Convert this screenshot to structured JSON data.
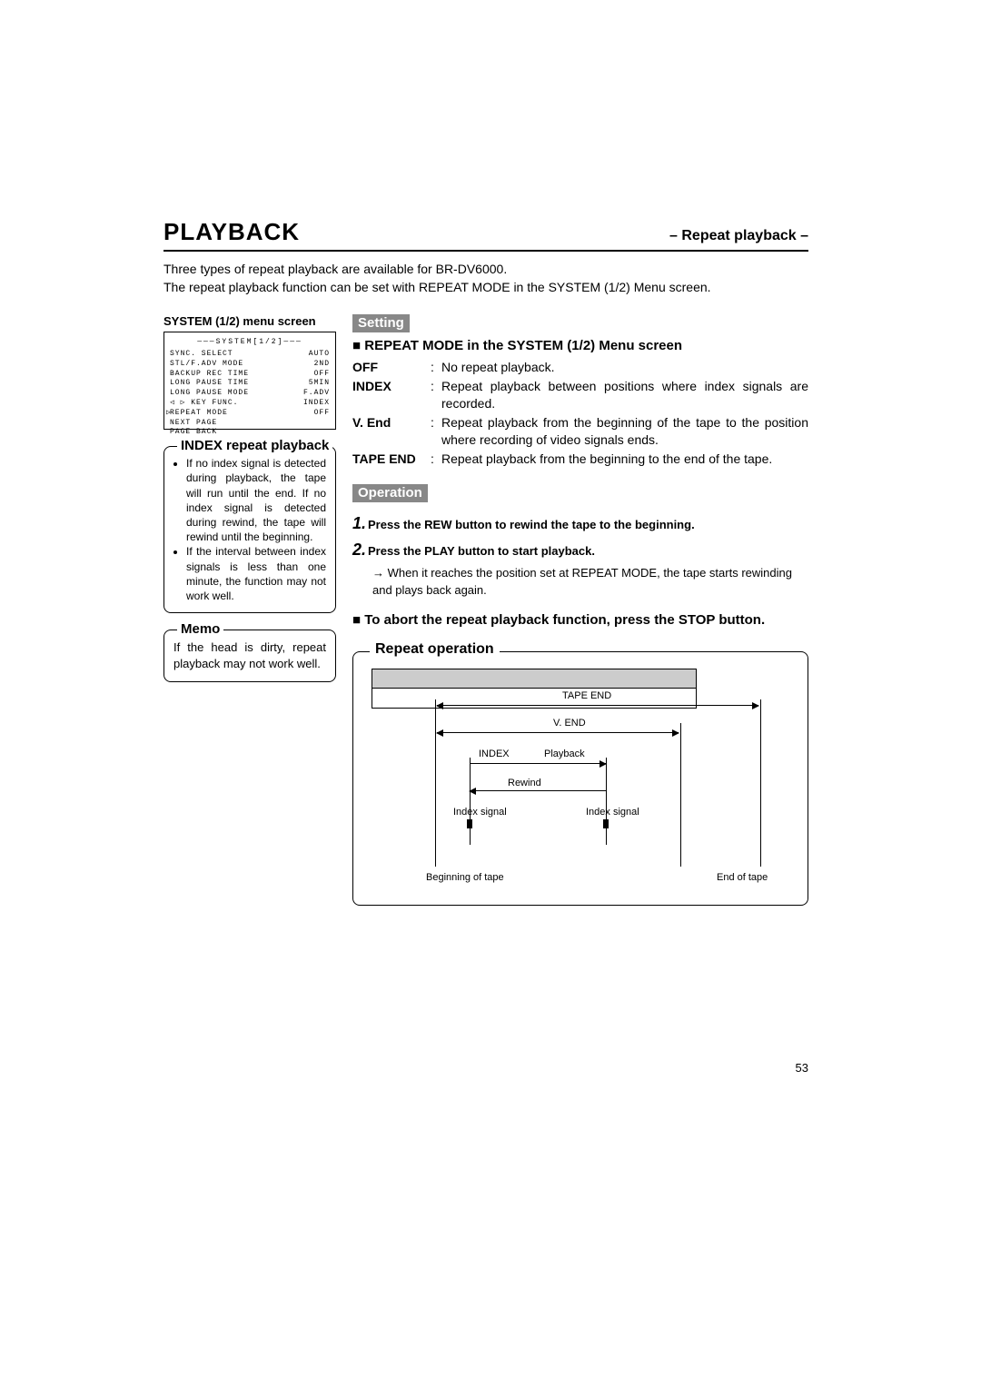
{
  "header": {
    "title": "PLAYBACK",
    "subtitle": "– Repeat playback –"
  },
  "intro": {
    "line1": "Three types of repeat playback are available for BR-DV6000.",
    "line2": "The repeat playback function can be set with REPEAT MODE in the SYSTEM (1/2) Menu screen."
  },
  "menu": {
    "caption": "SYSTEM (1/2) menu screen",
    "title": "———SYSTEM[1/2]———",
    "rows": [
      {
        "l": "SYNC. SELECT",
        "r": "AUTO"
      },
      {
        "l": "STL/F.ADV MODE",
        "r": "2ND"
      },
      {
        "l": "BACKUP REC TIME",
        "r": "OFF"
      },
      {
        "l": "LONG PAUSE TIME",
        "r": "5MIN"
      },
      {
        "l": "LONG PAUSE MODE",
        "r": "F.ADV"
      },
      {
        "l": " ◁ ▷  KEY FUNC.",
        "r": "INDEX"
      },
      {
        "l": "REPEAT MODE",
        "r": "OFF",
        "cursor": "▷"
      },
      {
        "l": "NEXT PAGE",
        "r": ""
      },
      {
        "l": "PAGE BACK",
        "r": ""
      }
    ]
  },
  "setting": {
    "label": "Setting",
    "heading": "REPEAT MODE in the SYSTEM (1/2) Menu screen",
    "items": [
      {
        "term": "OFF",
        "desc": "No repeat playback."
      },
      {
        "term": "INDEX",
        "desc": "Repeat playback between positions where index signals are recorded."
      },
      {
        "term": "V. End",
        "desc": "Repeat playback from the beginning of the tape to the position where recording of video signals ends."
      },
      {
        "term": "TAPE END",
        "desc": "Repeat playback from the beginning to the end of the tape."
      }
    ]
  },
  "index_box": {
    "title": "INDEX repeat playback",
    "b1": "If no index signal is detected during playback, the tape will run until the end. If no index signal is detected during rewind, the tape will rewind until the beginning.",
    "b2": "If the interval between index signals is less than one minute, the function may not work well."
  },
  "memo": {
    "title": "Memo",
    "text": "If the head is dirty, repeat playback may not work well."
  },
  "operation": {
    "label": "Operation",
    "step1": "Press the REW button to rewind the tape to the beginning.",
    "step2": "Press the PLAY button to start playback.",
    "note": "When it reaches the position set at REPEAT MODE, the tape starts rewinding and plays back again.",
    "abort": "To abort the repeat playback function, press the STOP button."
  },
  "repeat_diagram": {
    "title": "Repeat operation",
    "labels": {
      "tape_end": "TAPE END",
      "v_end": "V. END",
      "index": "INDEX",
      "playback": "Playback",
      "rewind": "Rewind",
      "idx1": "Index signal",
      "idx2": "Index signal",
      "begin": "Beginning of tape",
      "end": "End of tape"
    }
  },
  "page_number": "53"
}
